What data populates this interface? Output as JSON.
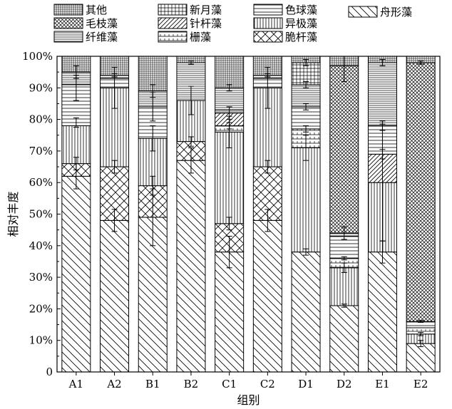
{
  "chart_data": {
    "type": "bar",
    "stacked": true,
    "xlabel": "组别",
    "ylabel": "相对丰度",
    "ylim": [
      0,
      100
    ],
    "y_ticks": [
      "0",
      "10%",
      "20%",
      "30%",
      "40%",
      "50%",
      "60%",
      "70%",
      "80%",
      "90%",
      "100%"
    ],
    "categories": [
      "A1",
      "A2",
      "B1",
      "B2",
      "C1",
      "C2",
      "D1",
      "D2",
      "E1",
      "E2"
    ],
    "legend_position": "top",
    "series": [
      {
        "name": "舟形藻",
        "pattern": "diag-down",
        "values": [
          62,
          48,
          49,
          67,
          38,
          48,
          38,
          21,
          38,
          9
        ]
      },
      {
        "name": "脆杆藻",
        "pattern": "crosshatch",
        "values": [
          4,
          17,
          10,
          6,
          9,
          17,
          0,
          0,
          0,
          0
        ]
      },
      {
        "name": "异极藻",
        "pattern": "vertical",
        "values": [
          12,
          25,
          15,
          13,
          29,
          25,
          33,
          12,
          22,
          3
        ]
      },
      {
        "name": "栅藻",
        "pattern": "horiz-sparse",
        "values": [
          0,
          0,
          0,
          0,
          2,
          0,
          6,
          3,
          0,
          2
        ]
      },
      {
        "name": "针杆藻",
        "pattern": "diag-up",
        "values": [
          0,
          0,
          0,
          0,
          4,
          0,
          0,
          0,
          9,
          0
        ]
      },
      {
        "name": "色球藻",
        "pattern": "horiz",
        "values": [
          13,
          3,
          10,
          0,
          1,
          3,
          7,
          7,
          9,
          2
        ]
      },
      {
        "name": "纤维藻",
        "pattern": "horiz-dense",
        "values": [
          4,
          1,
          5,
          12,
          7,
          1,
          7,
          1,
          20,
          0
        ]
      },
      {
        "name": "新月藻",
        "pattern": "grid",
        "values": [
          0,
          0,
          0,
          0,
          0,
          0,
          7,
          0,
          0,
          0
        ]
      },
      {
        "name": "毛枝藻",
        "pattern": "crosshatch-dense",
        "values": [
          0,
          0,
          0,
          0,
          0,
          0,
          0,
          53,
          0,
          82
        ]
      },
      {
        "name": "其他",
        "pattern": "grid-dense",
        "values": [
          5,
          6,
          11,
          2,
          10,
          6,
          2,
          3,
          2,
          2
        ]
      }
    ],
    "error_bars": [
      [
        62,
        4,
        "A1"
      ],
      [
        66,
        2,
        "A1"
      ],
      [
        79,
        1.5,
        "A1"
      ],
      [
        90,
        4,
        "A1"
      ],
      [
        95,
        2,
        "A1"
      ],
      [
        48,
        3.5,
        "A2"
      ],
      [
        65,
        2,
        "A2"
      ],
      [
        90,
        6.5,
        "A2"
      ],
      [
        94,
        0.5,
        "A2"
      ],
      [
        49,
        9,
        "B1"
      ],
      [
        59,
        3,
        "B1"
      ],
      [
        74,
        4,
        "B1"
      ],
      [
        84,
        4.5,
        "B1"
      ],
      [
        89,
        2,
        "B1"
      ],
      [
        67,
        4,
        "B2"
      ],
      [
        73,
        1.5,
        "B2"
      ],
      [
        86,
        4.5,
        "B2"
      ],
      [
        98,
        0.5,
        "B2"
      ],
      [
        38,
        5,
        "C1"
      ],
      [
        47,
        2,
        "C1"
      ],
      [
        76,
        5,
        "C1"
      ],
      [
        78,
        1,
        "C1"
      ],
      [
        82,
        2,
        "C1"
      ],
      [
        90,
        1,
        "C1"
      ],
      [
        48,
        3.5,
        "C2"
      ],
      [
        65,
        2,
        "C2"
      ],
      [
        90,
        6.5,
        "C2"
      ],
      [
        94,
        0.5,
        "C2"
      ],
      [
        38,
        1,
        "D1"
      ],
      [
        71,
        4,
        "D1"
      ],
      [
        77,
        1,
        "D1"
      ],
      [
        84,
        1,
        "D1"
      ],
      [
        91,
        1,
        "D1"
      ],
      [
        98,
        1,
        "D1"
      ],
      [
        21,
        0.5,
        "D2"
      ],
      [
        33,
        1.5,
        "D2"
      ],
      [
        36,
        0.5,
        "D2"
      ],
      [
        44,
        2,
        "D2"
      ],
      [
        97,
        5,
        "D2"
      ],
      [
        38,
        3.5,
        "E1"
      ],
      [
        60,
        18.5,
        "E1"
      ],
      [
        69,
        1.5,
        "E1"
      ],
      [
        78,
        1.5,
        "E1"
      ],
      [
        98,
        1,
        "E1"
      ],
      [
        9,
        1,
        "E2"
      ],
      [
        12,
        0.5,
        "E2"
      ],
      [
        16,
        0.3,
        "E2"
      ],
      [
        98,
        0.5,
        "E2"
      ]
    ]
  },
  "legend": [
    {
      "name": "其他",
      "pattern": "grid-dense"
    },
    {
      "name": "新月藻",
      "pattern": "grid"
    },
    {
      "name": "色球藻",
      "pattern": "horiz"
    },
    {
      "name": "舟形藻",
      "pattern": "diag-down"
    },
    {
      "name": "毛枝藻",
      "pattern": "crosshatch-dense"
    },
    {
      "name": "针杆藻",
      "pattern": "diag-up"
    },
    {
      "name": "异极藻",
      "pattern": "vertical"
    },
    {
      "name": "纤维藻",
      "pattern": "horiz-dense"
    },
    {
      "name": "栅藻",
      "pattern": "horiz-sparse"
    },
    {
      "name": "脆杆藻",
      "pattern": "crosshatch"
    }
  ]
}
